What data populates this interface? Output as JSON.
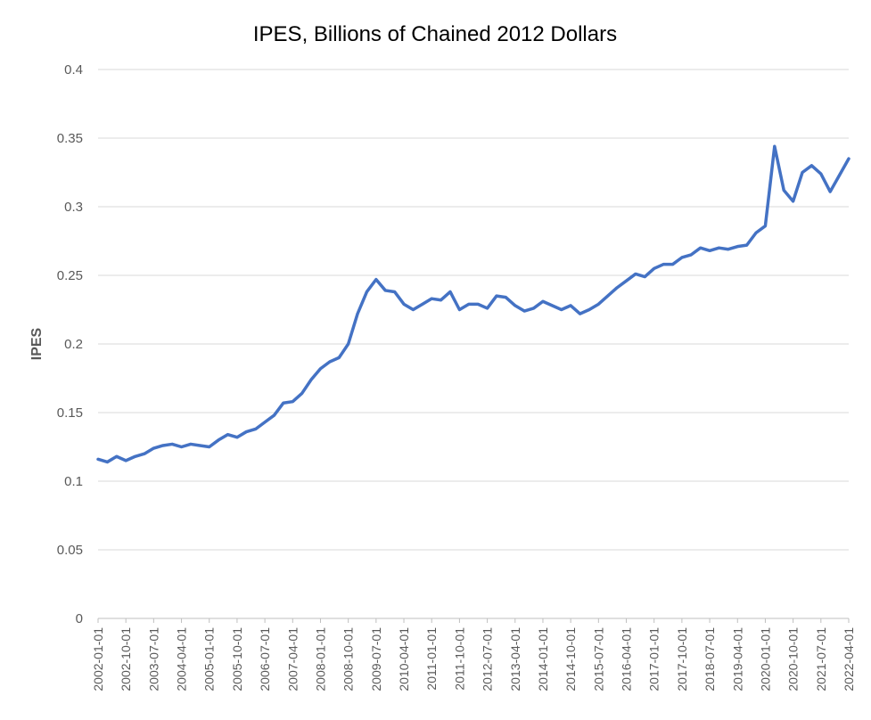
{
  "chart_data": {
    "type": "line",
    "title": "IPES, Billions of Chained 2012 Dollars",
    "xlabel": "",
    "ylabel": "IPES",
    "ylim": [
      0,
      0.4
    ],
    "y_ticks": [
      "0",
      "0.05",
      "0.1",
      "0.15",
      "0.2",
      "0.25",
      "0.3",
      "0.35",
      "0.4"
    ],
    "y_tick_values": [
      0,
      0.05,
      0.1,
      0.15,
      0.2,
      0.25,
      0.3,
      0.35,
      0.4
    ],
    "grid": true,
    "legend": "none",
    "x_tick_labels": [
      "2002-01-01",
      "2002-10-01",
      "2003-07-01",
      "2004-04-01",
      "2005-01-01",
      "2005-10-01",
      "2006-07-01",
      "2007-04-01",
      "2008-01-01",
      "2008-10-01",
      "2009-07-01",
      "2010-04-01",
      "2011-01-01",
      "2011-10-01",
      "2012-07-01",
      "2013-04-01",
      "2014-01-01",
      "2014-10-01",
      "2015-07-01",
      "2016-04-01",
      "2017-01-01",
      "2017-10-01",
      "2018-07-01",
      "2019-04-01",
      "2020-01-01",
      "2020-10-01",
      "2021-07-01",
      "2022-04-01"
    ],
    "x_tick_every": 3,
    "series": [
      {
        "name": "IPES",
        "color": "#4472c4",
        "start": "2002-01-01",
        "frequency": "quarterly",
        "values": [
          0.116,
          0.114,
          0.118,
          0.115,
          0.118,
          0.12,
          0.124,
          0.126,
          0.127,
          0.125,
          0.127,
          0.126,
          0.125,
          0.13,
          0.134,
          0.132,
          0.136,
          0.138,
          0.143,
          0.148,
          0.157,
          0.158,
          0.164,
          0.174,
          0.182,
          0.187,
          0.19,
          0.2,
          0.222,
          0.238,
          0.247,
          0.239,
          0.238,
          0.229,
          0.225,
          0.229,
          0.233,
          0.232,
          0.238,
          0.225,
          0.229,
          0.229,
          0.226,
          0.235,
          0.234,
          0.228,
          0.224,
          0.226,
          0.231,
          0.228,
          0.225,
          0.228,
          0.222,
          0.225,
          0.229,
          0.235,
          0.241,
          0.246,
          0.251,
          0.249,
          0.255,
          0.258,
          0.258,
          0.263,
          0.265,
          0.27,
          0.268,
          0.27,
          0.269,
          0.271,
          0.272,
          0.281,
          0.286,
          0.344,
          0.312,
          0.304,
          0.325,
          0.33,
          0.324,
          0.311,
          0.323,
          0.335
        ]
      }
    ]
  }
}
